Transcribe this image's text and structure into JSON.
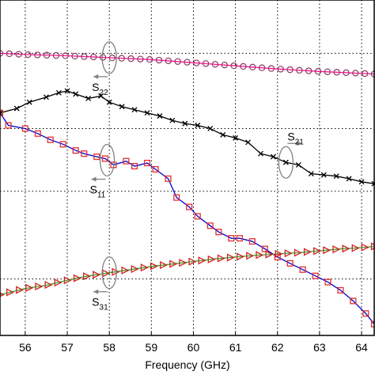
{
  "chart_data": {
    "type": "line",
    "xlabel": "Frequency (GHz)",
    "xlim": [
      55.4,
      64.3
    ],
    "ylim": [
      -4.5,
      0.85
    ],
    "xticks": [
      56,
      57,
      58,
      59,
      60,
      61,
      62,
      63,
      64
    ],
    "ygrid": [
      -3.6,
      -2.2,
      -1.2,
      0.0
    ],
    "grid": true,
    "series": [
      {
        "name": "S22",
        "marker": "circle",
        "line_color": "#ff1493",
        "marker_color": "#8b3a62",
        "x": [
          55.4,
          56.0,
          57.0,
          58.0,
          59.0,
          60.0,
          61.0,
          62.0,
          63.0,
          64.3
        ],
        "y": [
          0.0,
          -0.02,
          -0.04,
          -0.07,
          -0.1,
          -0.15,
          -0.2,
          -0.25,
          -0.29,
          -0.33
        ]
      },
      {
        "name": "S21",
        "marker": "x",
        "line_color": "#000000",
        "marker_color": "#000000",
        "x": [
          55.4,
          55.8,
          56.1,
          56.5,
          56.8,
          57.0,
          57.2,
          57.5,
          57.8,
          58.0,
          58.3,
          58.6,
          58.9,
          59.2,
          59.5,
          59.8,
          60.1,
          60.4,
          60.7,
          61.0,
          61.3,
          61.6,
          61.9,
          62.2,
          62.5,
          62.8,
          63.1,
          63.4,
          63.7,
          64.0,
          64.3
        ],
        "y": [
          -0.95,
          -0.88,
          -0.78,
          -0.7,
          -0.63,
          -0.6,
          -0.65,
          -0.72,
          -0.68,
          -0.78,
          -0.85,
          -0.9,
          -0.95,
          -1.0,
          -1.07,
          -1.12,
          -1.15,
          -1.2,
          -1.3,
          -1.35,
          -1.42,
          -1.6,
          -1.65,
          -1.74,
          -1.78,
          -1.92,
          -1.94,
          -1.96,
          -2.0,
          -2.05,
          -2.08
        ]
      },
      {
        "name": "S11",
        "marker": "square",
        "line_color": "#0000cd",
        "marker_color": "#e03030",
        "x": [
          55.4,
          55.6,
          56.0,
          56.3,
          56.6,
          56.9,
          57.2,
          57.4,
          57.7,
          57.9,
          58.1,
          58.4,
          58.6,
          58.9,
          59.1,
          59.4,
          59.6,
          59.9,
          60.1,
          60.4,
          60.6,
          60.9,
          61.1,
          61.4,
          61.7,
          62.0,
          62.3,
          62.6,
          62.9,
          63.2,
          63.5,
          63.8,
          64.1,
          64.3
        ],
        "y": [
          -0.95,
          -1.15,
          -1.2,
          -1.28,
          -1.38,
          -1.45,
          -1.55,
          -1.6,
          -1.65,
          -1.68,
          -1.78,
          -1.72,
          -1.8,
          -1.75,
          -1.85,
          -2.0,
          -2.3,
          -2.45,
          -2.6,
          -2.75,
          -2.85,
          -2.95,
          -2.95,
          -3.0,
          -3.12,
          -3.25,
          -3.35,
          -3.45,
          -3.55,
          -3.65,
          -3.78,
          -3.95,
          -4.15,
          -4.32
        ]
      },
      {
        "name": "S31",
        "marker": "triangle-right",
        "line_color": "#2eaa2e",
        "marker_color": "#d02020",
        "x": [
          55.4,
          56.0,
          56.5,
          57.0,
          57.5,
          58.0,
          58.5,
          59.0,
          59.5,
          60.0,
          60.5,
          61.0,
          61.5,
          62.0,
          62.5,
          63.0,
          63.5,
          64.0,
          64.3
        ],
        "y": [
          -3.85,
          -3.75,
          -3.7,
          -3.62,
          -3.55,
          -3.5,
          -3.45,
          -3.4,
          -3.36,
          -3.32,
          -3.28,
          -3.25,
          -3.22,
          -3.2,
          -3.18,
          -3.15,
          -3.12,
          -3.1,
          -3.08
        ]
      }
    ],
    "annotations": [
      {
        "label": "S",
        "sub": "22",
        "series": "S22",
        "at_x": 58.0,
        "arrow": "left"
      },
      {
        "label": "S",
        "sub": "21",
        "series": "S21",
        "at_x": 62.2,
        "arrow": "right"
      },
      {
        "label": "S",
        "sub": "11",
        "series": "S11",
        "at_x": 57.95,
        "arrow": "left"
      },
      {
        "label": "S",
        "sub": "31",
        "series": "S31",
        "at_x": 58.0,
        "arrow": "left"
      }
    ]
  }
}
